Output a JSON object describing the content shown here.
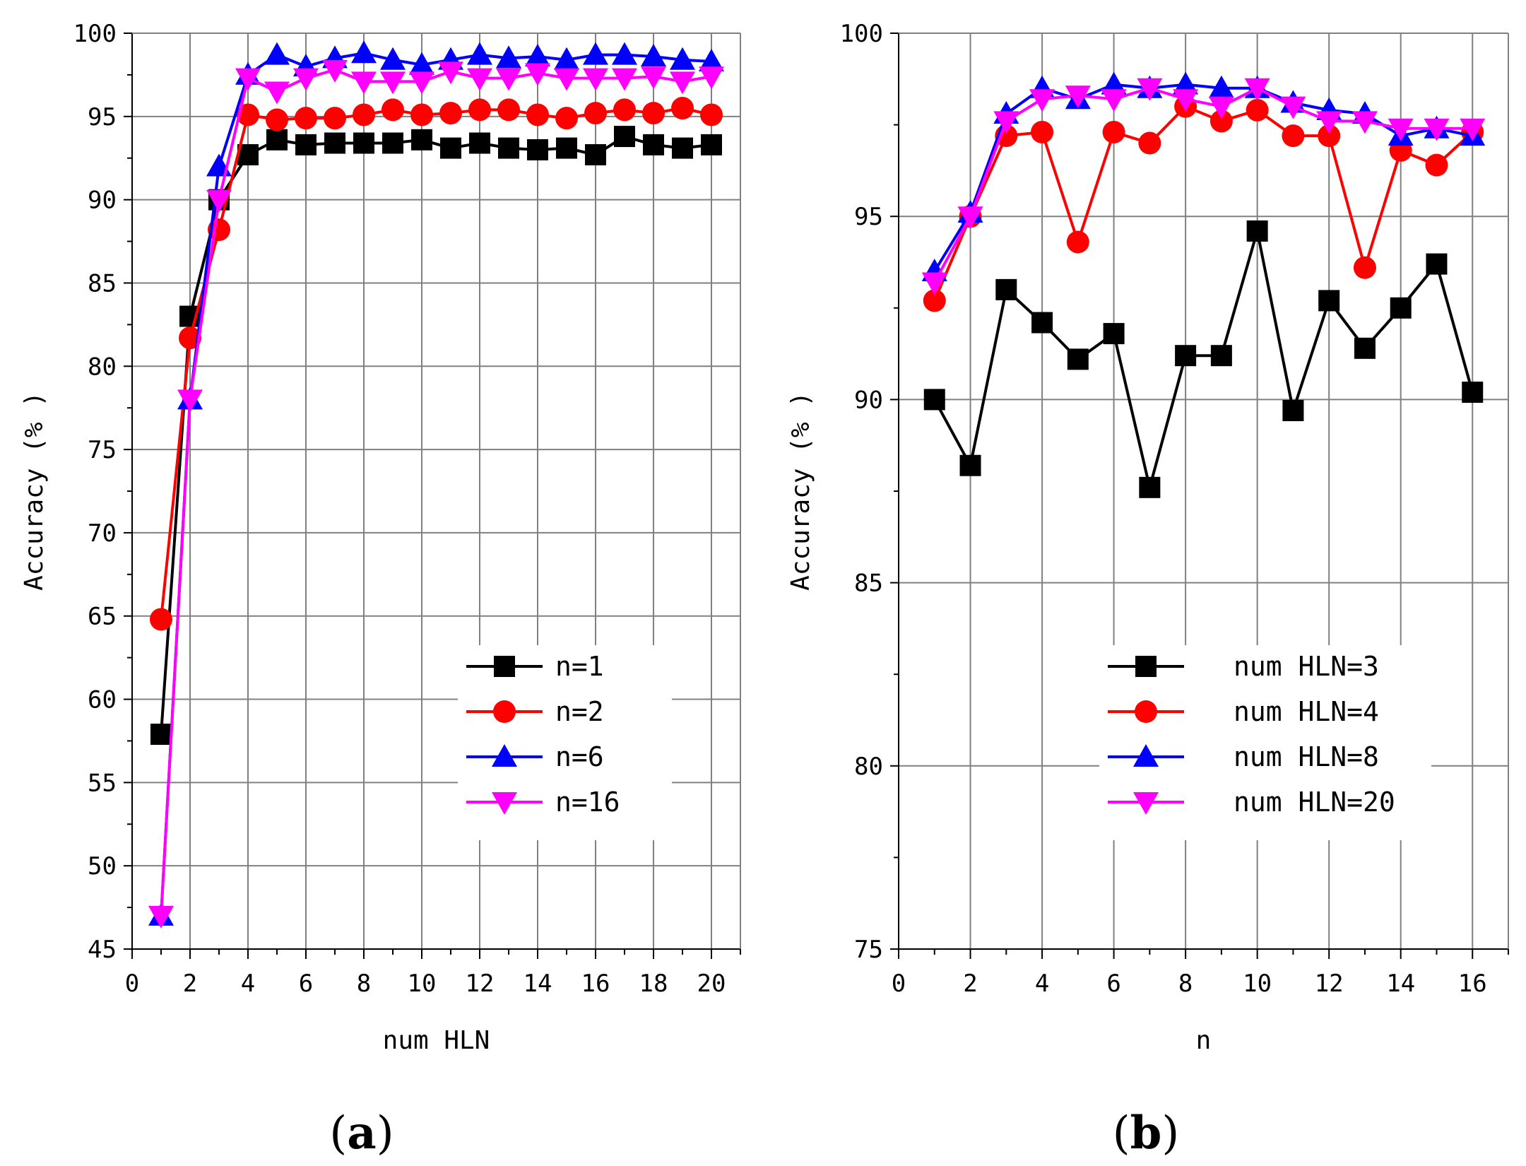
{
  "chart_data": [
    {
      "type": "line",
      "panel_label": "a",
      "xlabel": "num HLN",
      "ylabel": "Accuracy (% )",
      "xlim": [
        0,
        21
      ],
      "ylim": [
        45,
        100
      ],
      "xticks": [
        0,
        2,
        4,
        6,
        8,
        10,
        12,
        14,
        16,
        18,
        20
      ],
      "xticks_minor": [
        1,
        3,
        5,
        7,
        9,
        11,
        13,
        15,
        17,
        19,
        21
      ],
      "yticks": [
        45,
        50,
        55,
        60,
        65,
        70,
        75,
        80,
        85,
        90,
        95,
        100
      ],
      "grid": true,
      "legend_position": "lower-right",
      "x": [
        1,
        2,
        3,
        4,
        5,
        6,
        7,
        8,
        9,
        10,
        11,
        12,
        13,
        14,
        15,
        16,
        17,
        18,
        19,
        20
      ],
      "series": [
        {
          "name": "n=1",
          "color": "#000000",
          "marker": "square",
          "values": [
            57.9,
            83.0,
            90.0,
            92.7,
            93.6,
            93.3,
            93.4,
            93.4,
            93.4,
            93.6,
            93.1,
            93.4,
            93.1,
            93.0,
            93.1,
            92.7,
            93.8,
            93.3,
            93.1,
            93.3
          ]
        },
        {
          "name": "n=2",
          "color": "#ff0000",
          "marker": "circle",
          "values": [
            64.8,
            81.7,
            88.2,
            95.1,
            94.8,
            94.9,
            94.9,
            95.1,
            95.4,
            95.1,
            95.2,
            95.4,
            95.4,
            95.1,
            94.9,
            95.2,
            95.4,
            95.2,
            95.5,
            95.1
          ]
        },
        {
          "name": "n=6",
          "color": "#0000ff",
          "marker": "triangle-up",
          "values": [
            47.0,
            78.0,
            92.0,
            97.5,
            98.7,
            98.0,
            98.5,
            98.8,
            98.4,
            98.1,
            98.4,
            98.7,
            98.5,
            98.6,
            98.4,
            98.7,
            98.7,
            98.6,
            98.4,
            98.3
          ]
        },
        {
          "name": "n=16",
          "color": "#ff00ff",
          "marker": "triangle-down",
          "values": [
            47.0,
            78.0,
            90.0,
            97.3,
            96.5,
            97.3,
            97.8,
            97.1,
            97.1,
            97.1,
            97.7,
            97.3,
            97.3,
            97.6,
            97.3,
            97.3,
            97.3,
            97.4,
            97.1,
            97.4
          ]
        }
      ]
    },
    {
      "type": "line",
      "panel_label": "b",
      "xlabel": "n",
      "ylabel": "Accuracy (% )",
      "xlim": [
        0,
        17
      ],
      "ylim": [
        75,
        100
      ],
      "xticks": [
        0,
        2,
        4,
        6,
        8,
        10,
        12,
        14,
        16
      ],
      "xticks_minor": [
        1,
        3,
        5,
        7,
        9,
        11,
        13,
        15,
        17
      ],
      "yticks": [
        75,
        80,
        85,
        90,
        95,
        100
      ],
      "grid": true,
      "legend_position": "lower-right",
      "x": [
        1,
        2,
        3,
        4,
        5,
        6,
        7,
        8,
        9,
        10,
        11,
        12,
        13,
        14,
        15,
        16
      ],
      "series": [
        {
          "name": "num HLN=3",
          "color": "#000000",
          "marker": "square",
          "values": [
            90.0,
            88.2,
            93.0,
            92.1,
            91.1,
            91.8,
            87.6,
            91.2,
            91.2,
            94.6,
            89.7,
            92.7,
            91.4,
            92.5,
            93.7,
            90.2
          ]
        },
        {
          "name": "num HLN=4",
          "color": "#ff0000",
          "marker": "circle",
          "values": [
            92.7,
            95.0,
            97.2,
            97.3,
            94.3,
            97.3,
            97.0,
            98.0,
            97.6,
            97.9,
            97.2,
            97.2,
            93.6,
            96.8,
            96.4,
            97.3
          ]
        },
        {
          "name": "num HLN=8",
          "color": "#0000ff",
          "marker": "triangle-up",
          "values": [
            93.5,
            95.1,
            97.8,
            98.5,
            98.2,
            98.6,
            98.5,
            98.6,
            98.5,
            98.5,
            98.1,
            97.9,
            97.8,
            97.2,
            97.4,
            97.2
          ]
        },
        {
          "name": "num HLN=20",
          "color": "#ff00ff",
          "marker": "triangle-down",
          "values": [
            93.2,
            95.0,
            97.6,
            98.2,
            98.3,
            98.2,
            98.5,
            98.2,
            98.0,
            98.5,
            98.0,
            97.6,
            97.6,
            97.4,
            97.4,
            97.4
          ]
        }
      ]
    }
  ]
}
